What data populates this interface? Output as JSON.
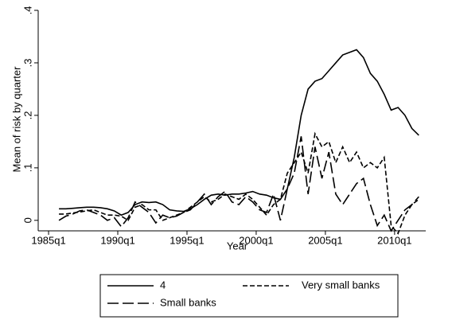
{
  "chart_data": {
    "type": "line",
    "x_label": "Year",
    "y_label": "Mean of risk by quarter",
    "x": [
      103,
      105,
      107,
      109,
      111,
      113,
      115,
      117,
      119,
      121,
      123,
      125,
      127,
      129,
      131,
      133,
      135,
      137,
      139,
      141,
      143,
      145,
      147,
      149,
      151,
      153,
      155,
      157,
      159,
      161,
      163,
      165,
      167,
      169,
      171,
      173,
      175,
      177,
      179,
      181,
      183,
      185,
      187,
      189,
      191,
      193,
      195,
      197,
      199,
      201,
      203,
      205,
      207
    ],
    "xlim": [
      97,
      209
    ],
    "xticks": [
      {
        "value": 100,
        "label": "1985q1"
      },
      {
        "value": 120,
        "label": "1990q1"
      },
      {
        "value": 140,
        "label": "1995q1"
      },
      {
        "value": 160,
        "label": "2000q1"
      },
      {
        "value": 180,
        "label": "2005q1"
      },
      {
        "value": 200,
        "label": "2010q1"
      }
    ],
    "ylim": [
      -0.02,
      0.4
    ],
    "yticks": [
      0,
      {
        "value": 0.1,
        "label": ".1"
      },
      {
        "value": 0.2,
        "label": ".2"
      },
      {
        "value": 0.3,
        "label": ".3"
      },
      {
        "value": 0.4,
        "label": ".4"
      }
    ],
    "grid": false,
    "legend": "bottom",
    "series": [
      {
        "name": "4",
        "color": "#000000",
        "dash": "solid",
        "values": [
          0.022,
          0.022,
          0.023,
          0.024,
          0.025,
          0.025,
          0.024,
          0.022,
          0.018,
          0.01,
          0.015,
          0.03,
          0.035,
          0.034,
          0.035,
          0.03,
          0.02,
          0.018,
          0.017,
          0.022,
          0.03,
          0.04,
          0.048,
          0.05,
          0.048,
          0.05,
          0.05,
          0.052,
          0.055,
          0.05,
          0.048,
          0.043,
          0.04,
          0.06,
          0.12,
          0.2,
          0.25,
          0.265,
          0.27,
          0.285,
          0.3,
          0.315,
          0.32,
          0.325,
          0.31,
          0.28,
          0.265,
          0.24,
          0.21,
          0.215,
          0.2,
          0.175,
          0.162
        ]
      },
      {
        "name": "Very small banks",
        "color": "#000000",
        "dash": "short-dash",
        "values": [
          0.012,
          0.012,
          0.014,
          0.016,
          0.018,
          0.02,
          0.015,
          0.01,
          0.01,
          0.008,
          0,
          0.025,
          0.03,
          0.02,
          0.02,
          0,
          0.005,
          0.01,
          0.015,
          0.025,
          0.035,
          0.045,
          0.035,
          0.04,
          0.05,
          0.045,
          0.04,
          0.05,
          0.04,
          0.025,
          0.01,
          0.03,
          0.04,
          0.09,
          0.11,
          0.13,
          0.09,
          0.165,
          0.14,
          0.15,
          0.11,
          0.14,
          0.11,
          0.13,
          0.1,
          0.11,
          0.1,
          0.12,
          -0.01,
          -0.025,
          0.01,
          0.03,
          0.04
        ]
      },
      {
        "name": "Small banks",
        "color": "#000000",
        "dash": "long-dash",
        "values": [
          0,
          0.008,
          0.012,
          0.018,
          0.02,
          0.015,
          0.01,
          0,
          0.005,
          -0.012,
          0.005,
          0.035,
          0.025,
          0.015,
          -0.005,
          0.01,
          0.005,
          0.008,
          0.015,
          0.02,
          0.035,
          0.05,
          0.03,
          0.045,
          0.055,
          0.035,
          0.03,
          0.045,
          0.035,
          0.02,
          0.015,
          0.05,
          0,
          0.06,
          0.09,
          0.16,
          0.05,
          0.14,
          0.08,
          0.13,
          0.05,
          0.03,
          0.05,
          0.07,
          0.08,
          0.03,
          -0.01,
          0.01,
          -0.02,
          0,
          0.02,
          0.03,
          0.045
        ]
      }
    ]
  }
}
